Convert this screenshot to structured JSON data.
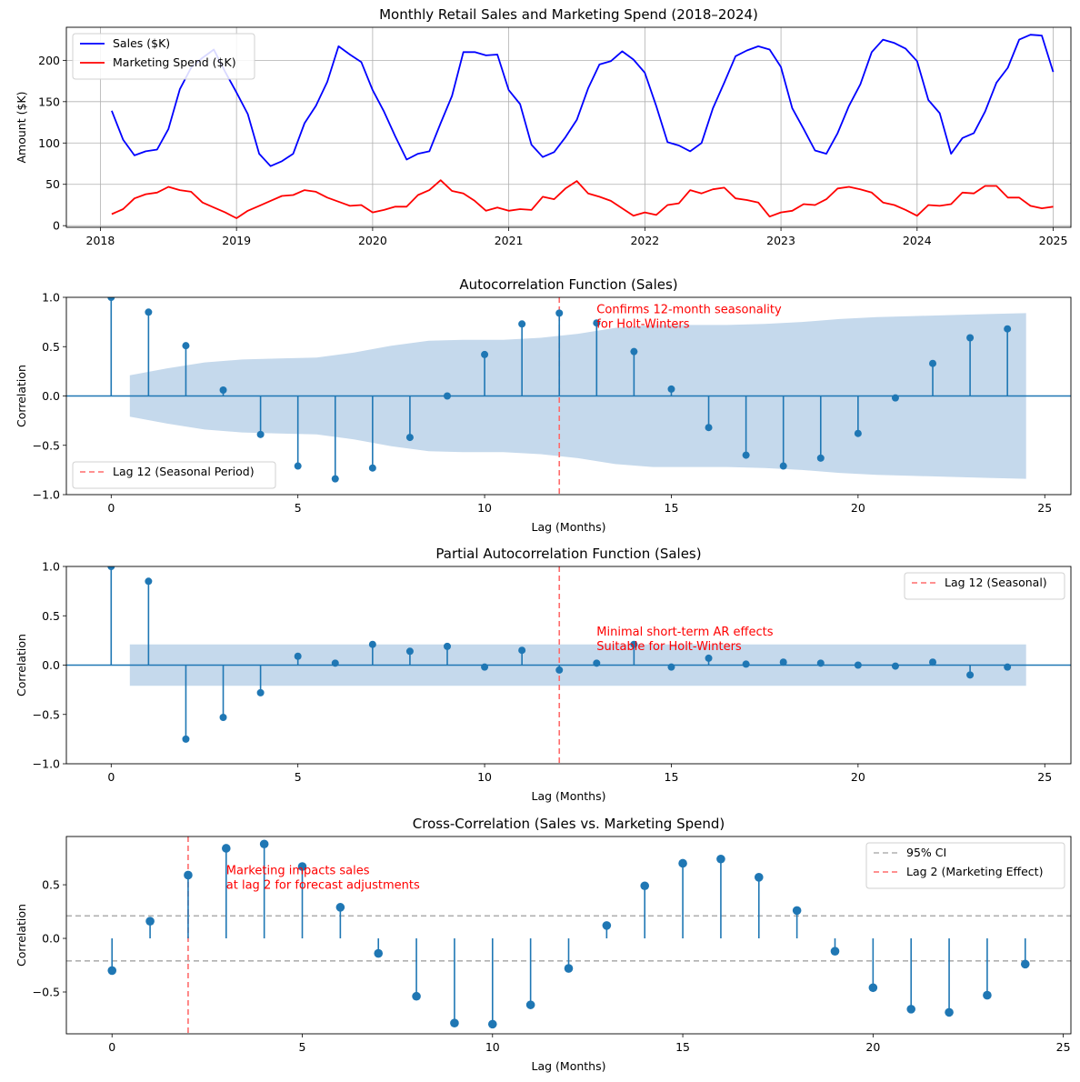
{
  "chart_data": [
    {
      "type": "line",
      "title": "Monthly Retail Sales and Marketing Spend (2018–2024)",
      "ylabel": "Amount ($K)",
      "xlabel": "",
      "xlim": [
        2017.75,
        2025.13
      ],
      "ylim": [
        -2,
        240
      ],
      "x_ticks": [
        2018,
        2019,
        2020,
        2021,
        2022,
        2023,
        2024,
        2025
      ],
      "x_tick_labels": [
        "2018",
        "2019",
        "2020",
        "2021",
        "2022",
        "2023",
        "2024",
        "2025"
      ],
      "y_ticks": [
        0,
        50,
        100,
        150,
        200
      ],
      "y_tick_labels": [
        "0",
        "50",
        "100",
        "150",
        "200"
      ],
      "grid": true,
      "legend_position": "top-left",
      "x_start": 2018.0833,
      "x_step": 0.08333,
      "series": [
        {
          "name": "Sales ($K)",
          "color": "#0000ff",
          "values": [
            139,
            104,
            85,
            90,
            92,
            117,
            165,
            191,
            203,
            213,
            186,
            161,
            135,
            87,
            72,
            78,
            87,
            124,
            145,
            174,
            217,
            207,
            198,
            164,
            138,
            108,
            80,
            87,
            90,
            124,
            157,
            210,
            210,
            206,
            207,
            164,
            147,
            98,
            83,
            89,
            107,
            128,
            166,
            195,
            199,
            211,
            201,
            185,
            145,
            101,
            97,
            90,
            100,
            142,
            173,
            205,
            212,
            217,
            213,
            192,
            142,
            117,
            91,
            87,
            112,
            145,
            171,
            210,
            225,
            221,
            214,
            199,
            152,
            136,
            87,
            106,
            112,
            138,
            173,
            191,
            225,
            231,
            230,
            186
          ]
        },
        {
          "name": "Marketing Spend ($K)",
          "color": "#ff0000",
          "values": [
            14,
            20,
            33,
            38,
            40,
            47,
            43,
            41,
            28,
            22,
            16,
            9,
            18,
            24,
            30,
            36,
            37,
            43,
            41,
            34,
            29,
            24,
            25,
            16,
            19,
            23,
            23,
            37,
            43,
            55,
            42,
            39,
            30,
            18,
            22,
            18,
            20,
            19,
            35,
            32,
            45,
            54,
            39,
            35,
            30,
            21,
            12,
            16,
            13,
            25,
            27,
            43,
            39,
            44,
            46,
            33,
            31,
            28,
            11,
            16,
            18,
            26,
            25,
            32,
            45,
            47,
            44,
            40,
            28,
            25,
            19,
            12,
            25,
            24,
            26,
            40,
            39,
            48,
            48,
            34,
            34,
            24,
            21,
            23
          ]
        }
      ]
    },
    {
      "type": "stem",
      "title": "Autocorrelation Function (Sales)",
      "xlabel": "Lag (Months)",
      "ylabel": "Correlation",
      "xlim": [
        -1.2,
        25.7
      ],
      "ylim": [
        -1.0,
        1.0
      ],
      "x_ticks": [
        0,
        5,
        10,
        15,
        20,
        25
      ],
      "x_tick_labels": [
        "0",
        "5",
        "10",
        "15",
        "20",
        "25"
      ],
      "y_ticks": [
        -1.0,
        -0.5,
        0.0,
        0.5,
        1.0
      ],
      "y_tick_labels": [
        "−1.0",
        "−0.5",
        "0.0",
        "0.5",
        "1.0"
      ],
      "lags": [
        0,
        1,
        2,
        3,
        4,
        5,
        6,
        7,
        8,
        9,
        10,
        11,
        12,
        13,
        14,
        15,
        16,
        17,
        18,
        19,
        20,
        21,
        22,
        23,
        24
      ],
      "values": [
        1.0,
        0.85,
        0.51,
        0.06,
        -0.39,
        -0.71,
        -0.84,
        -0.73,
        -0.42,
        0.0,
        0.42,
        0.73,
        0.84,
        0.74,
        0.45,
        0.07,
        -0.32,
        -0.6,
        -0.71,
        -0.63,
        -0.38,
        -0.02,
        0.33,
        0.59,
        0.68
      ],
      "ci_band": {
        "x": [
          0.5,
          1.5,
          2.5,
          3.5,
          4.5,
          5.5,
          6.5,
          7.5,
          8.5,
          9.5,
          10.5,
          11.5,
          12.5,
          13.5,
          14.5,
          15.5,
          16.5,
          17.5,
          18.5,
          19.5,
          20.5,
          21.5,
          22.5,
          23.5,
          24.5
        ],
        "upper": [
          0.21,
          0.28,
          0.34,
          0.37,
          0.38,
          0.39,
          0.44,
          0.51,
          0.56,
          0.57,
          0.57,
          0.59,
          0.63,
          0.69,
          0.72,
          0.72,
          0.72,
          0.73,
          0.75,
          0.78,
          0.8,
          0.81,
          0.82,
          0.83,
          0.84
        ],
        "color": "#c5d9ec"
      },
      "marker_color": "#1f77b4",
      "vline": {
        "x": 12,
        "label": "Lag 12 (Seasonal Period)",
        "color": "#ff6b6b"
      },
      "legend_position": "bottom-left",
      "annotation": {
        "lines": [
          "Confirms 12-month seasonality",
          "for Holt-Winters"
        ],
        "x": 13,
        "y": 0.84
      }
    },
    {
      "type": "stem",
      "title": "Partial Autocorrelation Function (Sales)",
      "xlabel": "Lag (Months)",
      "ylabel": "Correlation",
      "xlim": [
        -1.2,
        25.7
      ],
      "ylim": [
        -1.0,
        1.0
      ],
      "x_ticks": [
        0,
        5,
        10,
        15,
        20,
        25
      ],
      "x_tick_labels": [
        "0",
        "5",
        "10",
        "15",
        "20",
        "25"
      ],
      "y_ticks": [
        -1.0,
        -0.5,
        0.0,
        0.5,
        1.0
      ],
      "y_tick_labels": [
        "−1.0",
        "−0.5",
        "0.0",
        "0.5",
        "1.0"
      ],
      "lags": [
        0,
        1,
        2,
        3,
        4,
        5,
        6,
        7,
        8,
        9,
        10,
        11,
        12,
        13,
        14,
        15,
        16,
        17,
        18,
        19,
        20,
        21,
        22,
        23,
        24
      ],
      "values": [
        1.0,
        0.85,
        -0.75,
        -0.53,
        -0.28,
        0.09,
        0.02,
        0.21,
        0.14,
        0.19,
        -0.02,
        0.15,
        -0.05,
        0.02,
        0.21,
        -0.02,
        0.07,
        0.01,
        0.03,
        0.02,
        0.0,
        -0.01,
        0.03,
        -0.1,
        -0.02
      ],
      "ci_band": {
        "x": [
          0.5,
          24.5
        ],
        "upper": [
          0.21,
          0.21
        ],
        "color": "#c5d9ec"
      },
      "marker_color": "#1f77b4",
      "vline": {
        "x": 12,
        "label": "Lag 12 (Seasonal)",
        "color": "#ff6b6b"
      },
      "legend_position": "top-right",
      "annotation": {
        "lines": [
          "Minimal short-term AR effects",
          "Suitable for Holt-Winters"
        ],
        "x": 13,
        "y": 0.3
      }
    },
    {
      "type": "stem",
      "title": "Cross-Correlation (Sales vs. Marketing Spend)",
      "xlabel": "Lag (Months)",
      "ylabel": "Correlation",
      "xlim": [
        -1.2,
        25.2
      ],
      "ylim": [
        -0.89,
        0.95
      ],
      "x_ticks": [
        0,
        5,
        10,
        15,
        20,
        25
      ],
      "x_tick_labels": [
        "0",
        "5",
        "10",
        "15",
        "20",
        "25"
      ],
      "y_ticks": [
        -0.5,
        0.0,
        0.5
      ],
      "y_tick_labels": [
        "−0.5",
        "0.0",
        "0.5"
      ],
      "lags": [
        0,
        1,
        2,
        3,
        4,
        5,
        6,
        7,
        8,
        9,
        10,
        11,
        12,
        13,
        14,
        15,
        16,
        17,
        18,
        19,
        20,
        21,
        22,
        23,
        24
      ],
      "values": [
        -0.3,
        0.16,
        0.59,
        0.84,
        0.88,
        0.67,
        0.29,
        -0.14,
        -0.54,
        -0.79,
        -0.8,
        -0.62,
        -0.28,
        0.12,
        0.49,
        0.7,
        0.74,
        0.57,
        0.26,
        -0.12,
        -0.46,
        -0.66,
        -0.69,
        -0.53,
        -0.24
      ],
      "ci": {
        "value": 0.21,
        "label": "95% CI",
        "color": "#b0b0b0"
      },
      "marker_color": "#1f77b4",
      "vline": {
        "x": 2,
        "label": "Lag 2 (Marketing Effect)",
        "color": "#ff6b6b"
      },
      "legend_position": "top-right",
      "annotation": {
        "lines": [
          "Marketing impacts sales",
          "at lag 2 for forecast adjustments"
        ],
        "x": 3,
        "y": 0.6
      }
    }
  ]
}
